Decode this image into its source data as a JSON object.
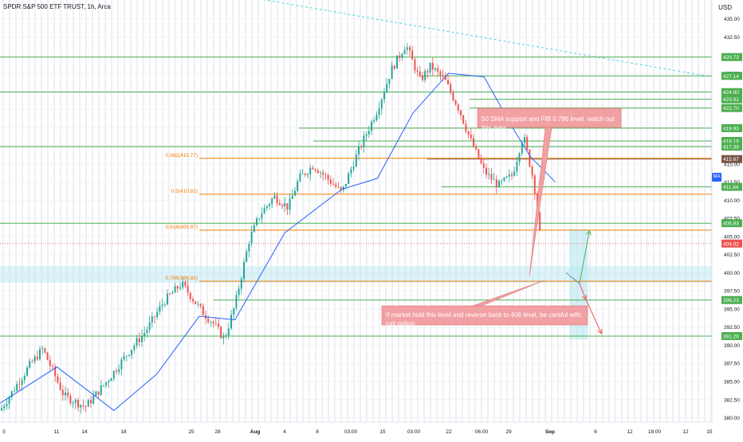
{
  "header": {
    "title": "SPDR S&P 500 ETF TRUST, 1h, Arca",
    "currency": "USD"
  },
  "indicator_badge": "MA",
  "colors": {
    "up": "#26a69a",
    "down": "#ef5350",
    "ma": "#2962ff",
    "green_level": "#4caf50",
    "fib": "#f57c00",
    "note_bg": "#f1a0a3",
    "zone": "#b3e5f0",
    "trendline": "#4dd0e1",
    "last_price": "#ef5350"
  },
  "chart_data": {
    "type": "candlestick",
    "title": "SPDR S&P 500 ETF TRUST, 1h, Arca",
    "ylim": [
      379.4,
      437.6
    ],
    "y_ticks": [
      "435.00",
      "432.50",
      "430.00",
      "427.50",
      "425.00",
      "422.50",
      "420.00",
      "417.50",
      "415.00",
      "412.50",
      "410.00",
      "407.50",
      "405.00",
      "402.50",
      "400.00",
      "397.50",
      "395.00",
      "392.50",
      "390.00",
      "387.50",
      "385.00",
      "382.50",
      "380.00"
    ],
    "x_ticks": [
      "5",
      "11",
      "14",
      "18",
      "25",
      "28",
      "Aug",
      "4",
      "8",
      "03:00",
      "15",
      "03:00",
      "22",
      "06:00",
      "29",
      "Sep",
      "6",
      "12",
      "18:00",
      "12",
      "15"
    ],
    "grid": true,
    "candle_path": [
      {
        "x": 0.0,
        "p": 381.0
      },
      {
        "x": 0.04,
        "p": 387.0
      },
      {
        "x": 0.06,
        "p": 389.5
      },
      {
        "x": 0.09,
        "p": 383.0
      },
      {
        "x": 0.12,
        "p": 381.5
      },
      {
        "x": 0.15,
        "p": 385.0
      },
      {
        "x": 0.18,
        "p": 389.0
      },
      {
        "x": 0.205,
        "p": 392.0
      },
      {
        "x": 0.23,
        "p": 396.0
      },
      {
        "x": 0.255,
        "p": 398.5
      },
      {
        "x": 0.27,
        "p": 396.5
      },
      {
        "x": 0.285,
        "p": 394.5
      },
      {
        "x": 0.3,
        "p": 393.0
      },
      {
        "x": 0.315,
        "p": 390.8
      },
      {
        "x": 0.33,
        "p": 395.5
      },
      {
        "x": 0.35,
        "p": 404.5
      },
      {
        "x": 0.365,
        "p": 408.0
      },
      {
        "x": 0.385,
        "p": 410.5
      },
      {
        "x": 0.405,
        "p": 409.0
      },
      {
        "x": 0.42,
        "p": 413.0
      },
      {
        "x": 0.44,
        "p": 414.8
      },
      {
        "x": 0.46,
        "p": 413.0
      },
      {
        "x": 0.48,
        "p": 411.0
      },
      {
        "x": 0.5,
        "p": 416.0
      },
      {
        "x": 0.53,
        "p": 422.5
      },
      {
        "x": 0.55,
        "p": 428.0
      },
      {
        "x": 0.57,
        "p": 431.5
      },
      {
        "x": 0.59,
        "p": 426.5
      },
      {
        "x": 0.605,
        "p": 428.5
      },
      {
        "x": 0.625,
        "p": 426.5
      },
      {
        "x": 0.645,
        "p": 422.5
      },
      {
        "x": 0.66,
        "p": 418.5
      },
      {
        "x": 0.68,
        "p": 414.0
      },
      {
        "x": 0.7,
        "p": 412.0
      },
      {
        "x": 0.72,
        "p": 413.5
      },
      {
        "x": 0.735,
        "p": 419.0
      },
      {
        "x": 0.75,
        "p": 412.5
      },
      {
        "x": 0.76,
        "p": 404.0
      }
    ],
    "last_candle_end_x": 0.76,
    "ma_path": [
      {
        "x": 0.0,
        "p": 382.0
      },
      {
        "x": 0.08,
        "p": 387.0
      },
      {
        "x": 0.16,
        "p": 381.0
      },
      {
        "x": 0.22,
        "p": 386.0
      },
      {
        "x": 0.28,
        "p": 394.0
      },
      {
        "x": 0.33,
        "p": 393.5
      },
      {
        "x": 0.4,
        "p": 405.5
      },
      {
        "x": 0.48,
        "p": 411.5
      },
      {
        "x": 0.53,
        "p": 413.0
      },
      {
        "x": 0.58,
        "p": 422.0
      },
      {
        "x": 0.63,
        "p": 427.5
      },
      {
        "x": 0.68,
        "p": 427.0
      },
      {
        "x": 0.72,
        "p": 420.0
      },
      {
        "x": 0.745,
        "p": 416.0
      },
      {
        "x": 0.78,
        "p": 412.5
      }
    ],
    "levels": [
      {
        "value": 429.73,
        "label": "429.73",
        "color": "#4caf50",
        "x_start": 0.0
      },
      {
        "value": 427.14,
        "label": "427.14",
        "color": "#4caf50",
        "x_start": 0.59
      },
      {
        "value": 424.9,
        "label": "424.90",
        "color": "#4caf50",
        "x_start": 0.0
      },
      {
        "value": 423.91,
        "label": "423.91",
        "color": "#4caf50",
        "x_start": 0.66
      },
      {
        "value": 422.7,
        "label": "422.70",
        "color": "#4caf50",
        "x_start": 0.66
      },
      {
        "value": 419.93,
        "label": "419.93",
        "color": "#4caf50",
        "x_start": 0.42
      },
      {
        "value": 418.16,
        "label": "418.16",
        "color": "#4caf50",
        "x_start": 0.44
      },
      {
        "value": 417.38,
        "label": "417.38",
        "color": "#4caf50",
        "x_start": 0.0
      },
      {
        "value": 415.67,
        "label": "415.67",
        "color": "#795548",
        "x_start": 0.6
      },
      {
        "value": 411.84,
        "label": "411.84",
        "color": "#4caf50",
        "x_start": 0.62
      },
      {
        "value": 406.83,
        "label": "406.83",
        "color": "#4caf50",
        "x_start": 0.0
      },
      {
        "value": 404.02,
        "label": "404.02",
        "color": "#ef5350",
        "x_start": 0.0,
        "last_price": true
      },
      {
        "value": 396.23,
        "label": "396.23",
        "color": "#4caf50",
        "x_start": 0.3
      },
      {
        "value": 391.26,
        "label": "391.26",
        "color": "#4caf50",
        "x_start": 0.0
      }
    ],
    "fib_levels": [
      {
        "ratio_label": "0.382(415.77)",
        "value": 415.77
      },
      {
        "ratio_label": "0.5(410.82)",
        "value": 410.82
      },
      {
        "ratio_label": "0.618(405.87)",
        "value": 405.87
      },
      {
        "ratio_label": "0.786(398.82)",
        "value": 398.82
      }
    ],
    "fib_x_start": 0.28,
    "zone": {
      "y_top": 400.9,
      "y_bottom": 398.6
    },
    "projection_box": {
      "x0": 0.8,
      "x1": 0.826,
      "y_top": 406.0,
      "y_bottom": 390.8
    },
    "projection_arrows": [
      {
        "from": [
          0.795,
          400.0
        ],
        "to": [
          0.814,
          398.5
        ],
        "kind": "line"
      },
      {
        "from": [
          0.814,
          398.5
        ],
        "to": [
          0.828,
          405.8
        ],
        "kind": "arrow",
        "color": "#4caf50"
      },
      {
        "from": [
          0.814,
          398.5
        ],
        "to": [
          0.823,
          396.3
        ],
        "kind": "arrow",
        "color": "#ef5350"
      },
      {
        "from": [
          0.823,
          396.3
        ],
        "to": [
          0.845,
          391.6
        ],
        "kind": "arrow",
        "color": "#ef5350"
      }
    ],
    "trendline": {
      "from": [
        0.29,
        439.0
      ],
      "to": [
        1.0,
        427.0
      ]
    },
    "notes": [
      {
        "text": "50 SMA support and FIB 0.786 level. watch out this area"
      },
      {
        "text": "If market hold this level and reverse back to 406 level, be careful with call option"
      }
    ]
  }
}
